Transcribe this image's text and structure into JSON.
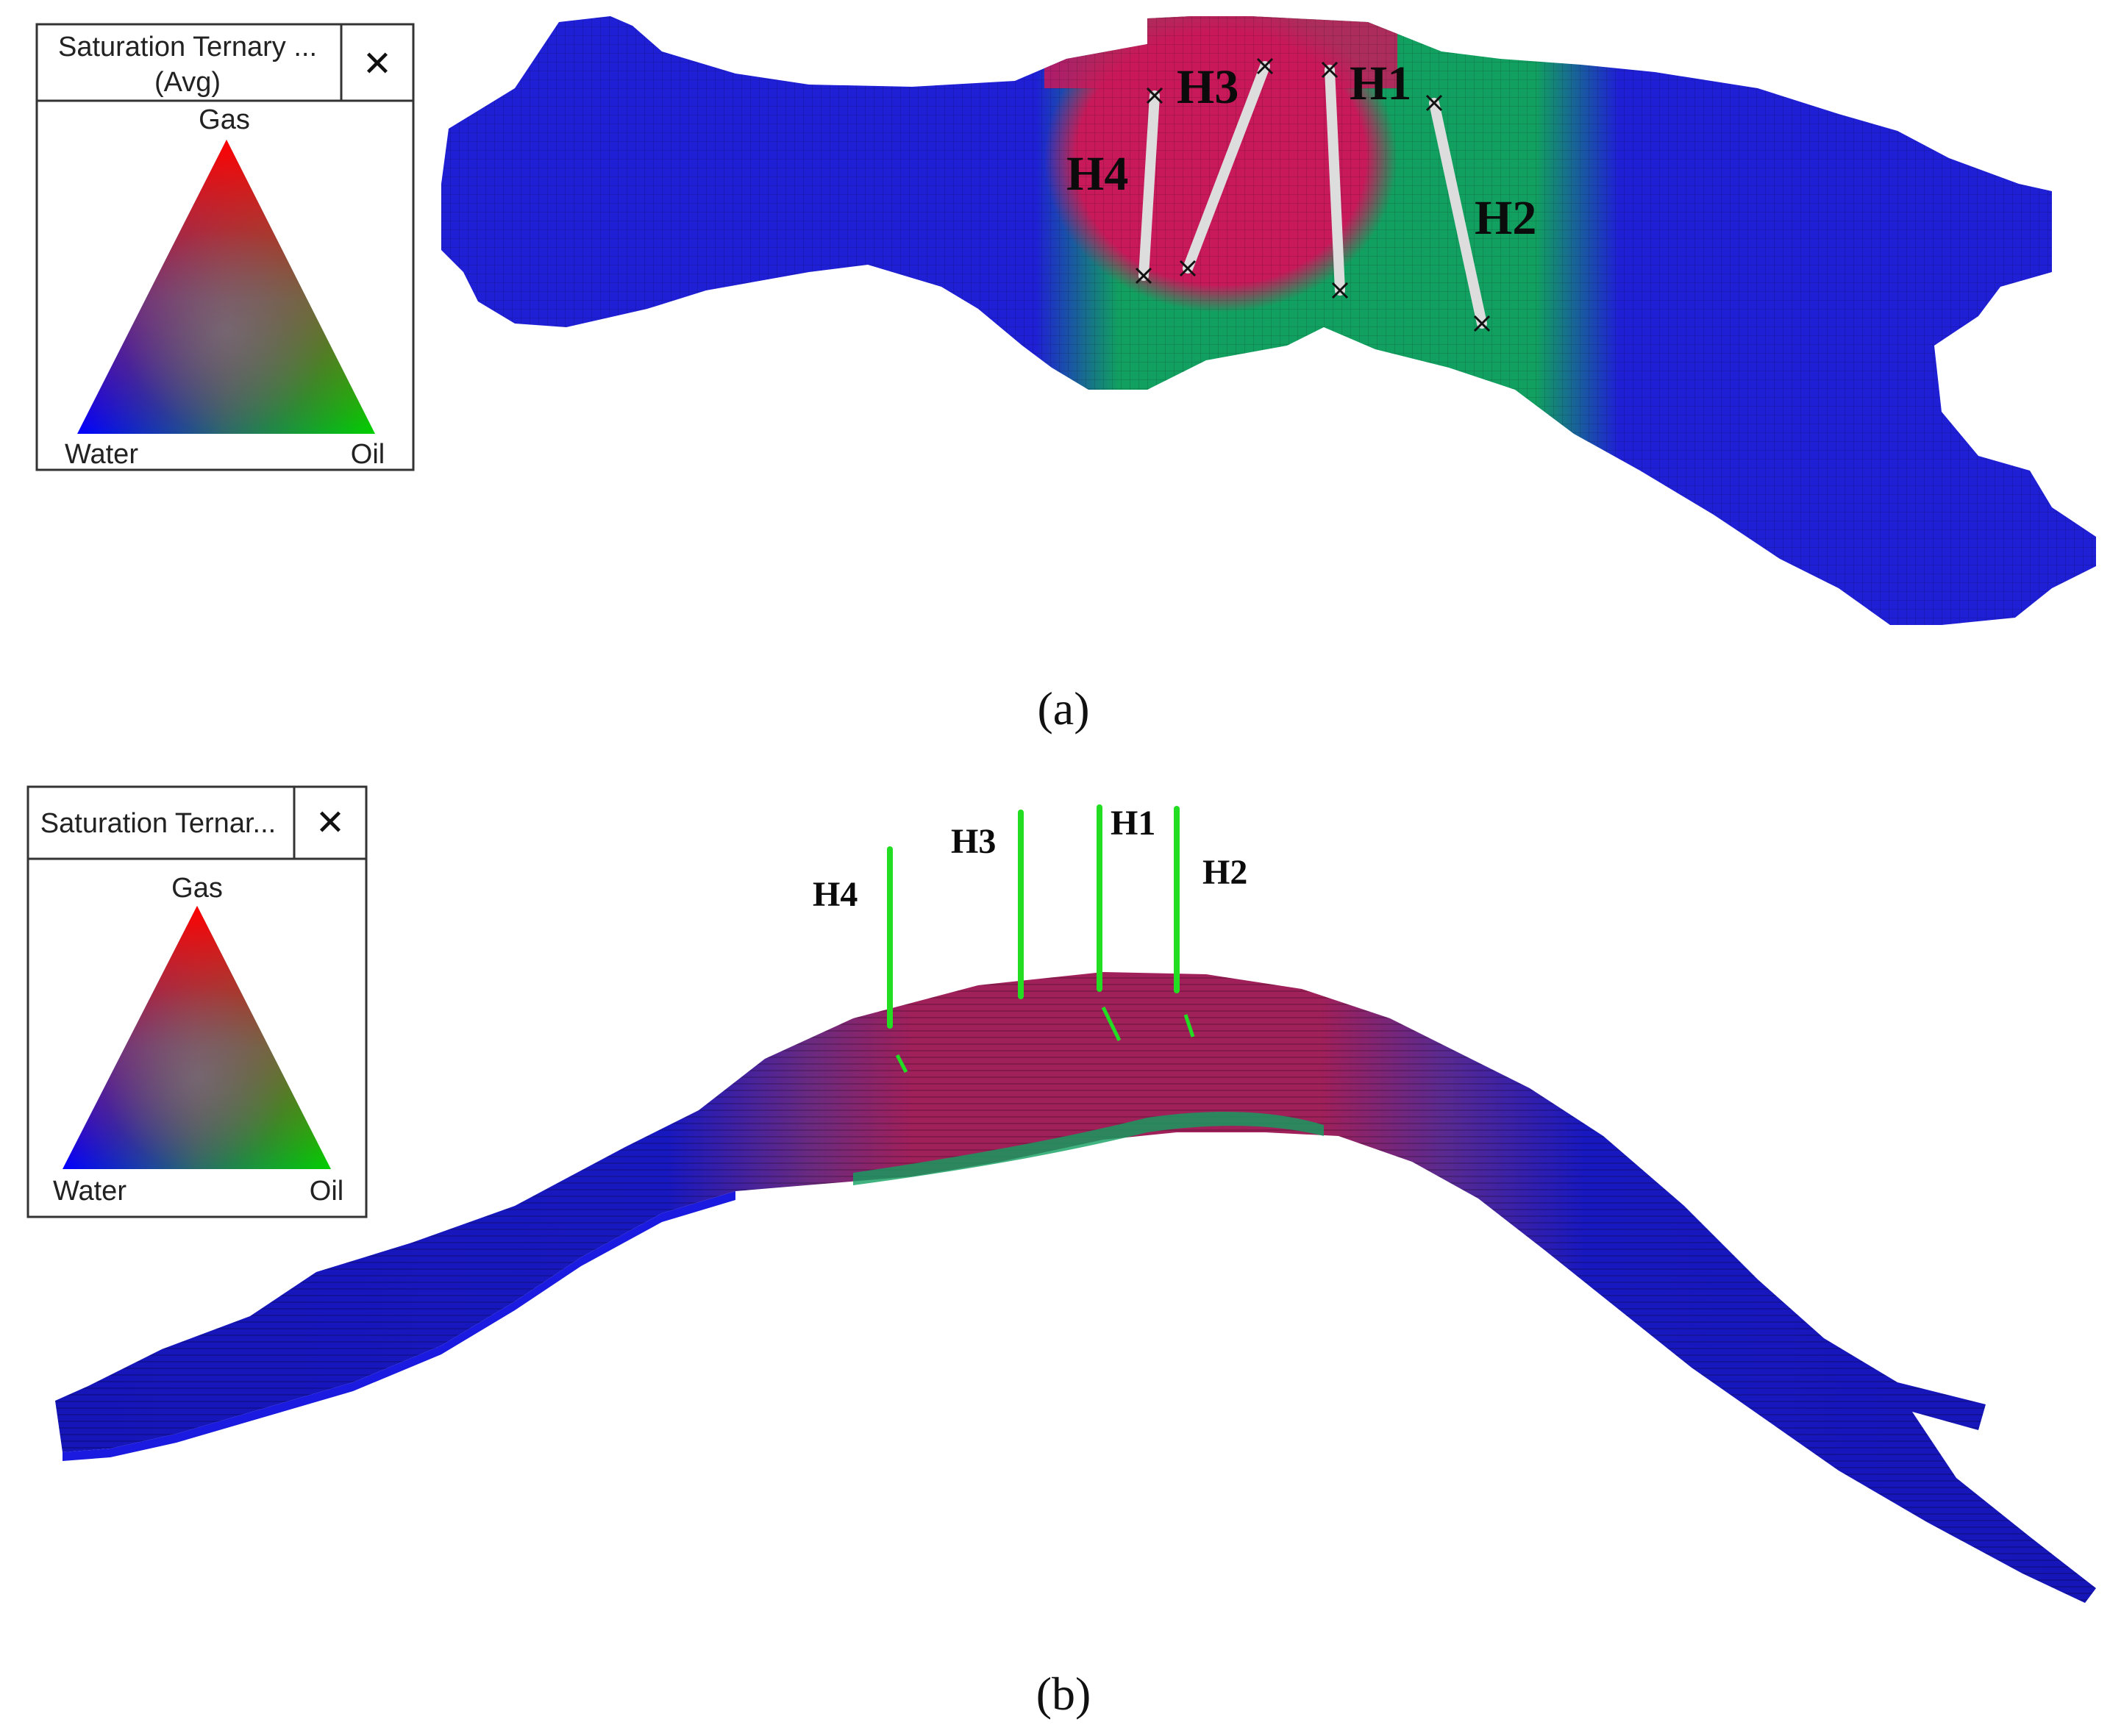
{
  "panels": [
    {
      "id": "a",
      "caption": "(a)",
      "legend": {
        "title_line1": "Saturation Ternary ...",
        "title_line2": "(Avg)",
        "close_glyph": "✕",
        "vertices": {
          "top": "Gas",
          "left": "Water",
          "right": "Oil"
        }
      },
      "wells": [
        "H3",
        "H1",
        "H4",
        "H2"
      ]
    },
    {
      "id": "b",
      "caption": "(b)",
      "legend": {
        "title_line1": "Saturation Ternar...",
        "close_glyph": "✕",
        "vertices": {
          "top": "Gas",
          "left": "Water",
          "right": "Oil"
        }
      },
      "wells": [
        "H4",
        "H3",
        "H1",
        "H2"
      ]
    }
  ],
  "colors": {
    "gas": "#ff0000",
    "oil": "#00c800",
    "water": "#0000ff",
    "grid_blue": "#1f1fd6",
    "grid_green": "#12a060",
    "grid_red": "#c8195a",
    "well_green": "#22dd22"
  }
}
